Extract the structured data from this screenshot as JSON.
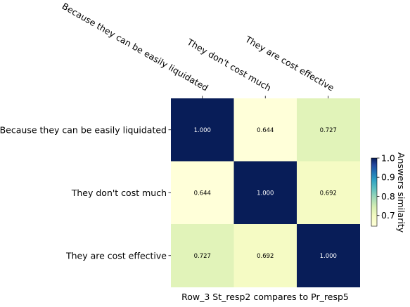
{
  "chart_data": {
    "type": "heatmap",
    "title": "",
    "xlabel": "Row_3 St_resp2 compares to Pr_resp5",
    "ylabel": "",
    "x_categories": [
      "Because they can be easily liquidated",
      "They don't cost much",
      "They are cost effective"
    ],
    "y_categories": [
      "Because they can be easily liquidated",
      "They don't cost much",
      "They are cost effective"
    ],
    "values": [
      [
        1.0,
        0.644,
        0.727
      ],
      [
        0.644,
        1.0,
        0.692
      ],
      [
        0.727,
        0.692,
        1.0
      ]
    ],
    "cell_labels": [
      [
        "1.000",
        "0.644",
        "0.727"
      ],
      [
        "0.644",
        "1.000",
        "0.692"
      ],
      [
        "0.727",
        "0.692",
        "1.000"
      ]
    ],
    "colormap": "YlGnBu",
    "colorbar": {
      "label": "Answers similarity",
      "range": [
        0.644,
        1.0
      ],
      "ticks": [
        0.7,
        0.8,
        0.9,
        1.0
      ],
      "tick_labels": [
        "0.7",
        "0.8",
        "0.9",
        "1.0"
      ],
      "placement": "right"
    },
    "x_tick_position": "top"
  }
}
